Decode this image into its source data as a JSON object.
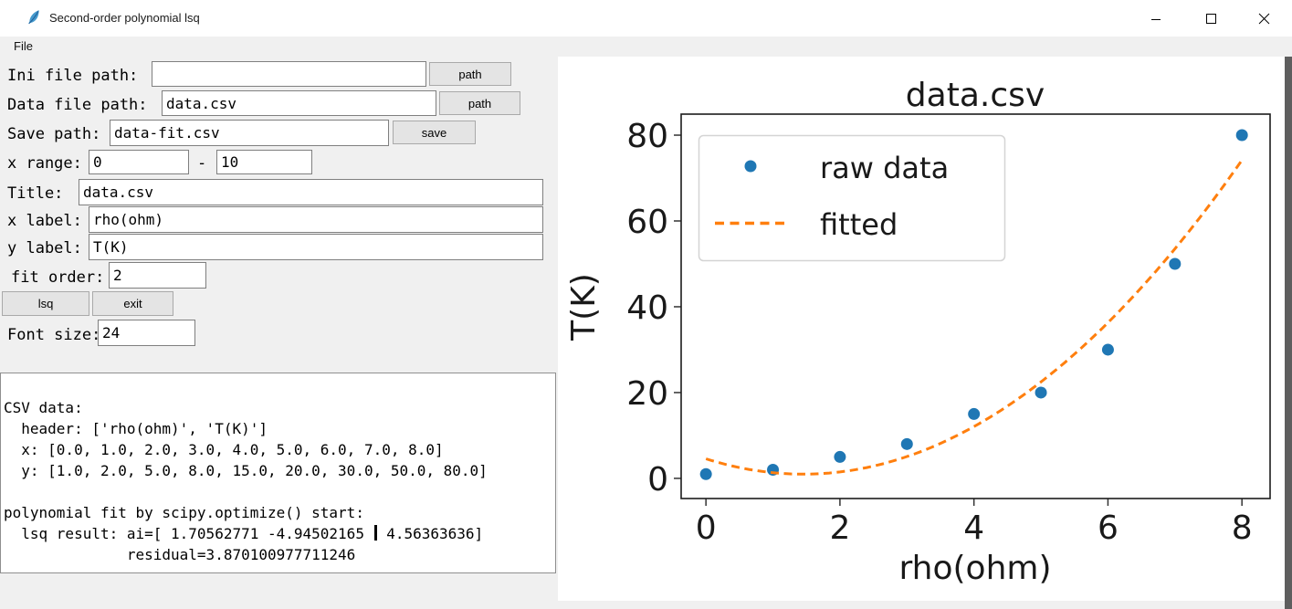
{
  "titlebar": {
    "title": "Second-order polynomial lsq"
  },
  "menubar": {
    "file_label": "File"
  },
  "form": {
    "ini_file": {
      "label": "Ini file path:",
      "value": "",
      "button": "path"
    },
    "data_file": {
      "label": "Data file path:",
      "value": "data.csv",
      "button": "path"
    },
    "save_path": {
      "label": "Save path:",
      "value": "data-fit.csv",
      "button": "save"
    },
    "x_range": {
      "label": "x range:",
      "from": "0",
      "separator": "-",
      "to": "10"
    },
    "plot_title": {
      "label": "Title:",
      "value": "data.csv"
    },
    "x_label": {
      "label": "x label:",
      "value": "rho(ohm)"
    },
    "y_label": {
      "label": "y label:",
      "value": "T(K)"
    },
    "fit_order": {
      "label": "fit order:",
      "value": "2"
    },
    "lsq_button": "lsq",
    "exit_button": "exit",
    "font_size": {
      "label": "Font size:",
      "value": "24"
    }
  },
  "console": {
    "lines": [
      "",
      "CSV data:",
      "  header: ['rho(ohm)', 'T(K)']",
      "  x: [0.0, 1.0, 2.0, 3.0, 4.0, 5.0, 6.0, 7.0, 8.0]",
      "  y: [1.0, 2.0, 5.0, 8.0, 15.0, 20.0, 30.0, 50.0, 80.0]",
      "",
      "polynomial fit by scipy.optimize() start:"
    ],
    "cursor_line": {
      "before": "  lsq result: ai=[ 1.70562771 -4.94502165 ",
      "after": " 4.56363636]"
    },
    "residual_line": "              residual=3.870100977711246"
  },
  "chart_data": {
    "type": "scatter",
    "title": "data.csv",
    "xlabel": "rho(ohm)",
    "ylabel": "T(K)",
    "xlim": [
      -0.37,
      8.42
    ],
    "ylim": [
      -4.7,
      84.9
    ],
    "x_ticks": [
      0,
      2,
      4,
      6,
      8
    ],
    "y_ticks": [
      0,
      20,
      40,
      60,
      80
    ],
    "grid": false,
    "legend_position": "upper left",
    "series": [
      {
        "name": "raw data",
        "type": "scatter",
        "color": "#1f77b4",
        "x": [
          0,
          1,
          2,
          3,
          4,
          5,
          6,
          7,
          8
        ],
        "y": [
          1.0,
          2.0,
          5.0,
          8.0,
          15.0,
          20.0,
          30.0,
          50.0,
          80.0
        ]
      },
      {
        "name": "fitted",
        "type": "line",
        "linestyle": "dashed",
        "color": "#ff7f0e",
        "poly_coeffs": [
          1.70562771,
          -4.94502165,
          4.56363636
        ],
        "x_start": 0,
        "x_end": 8
      }
    ],
    "fit_residual": 3.870100977711246
  }
}
